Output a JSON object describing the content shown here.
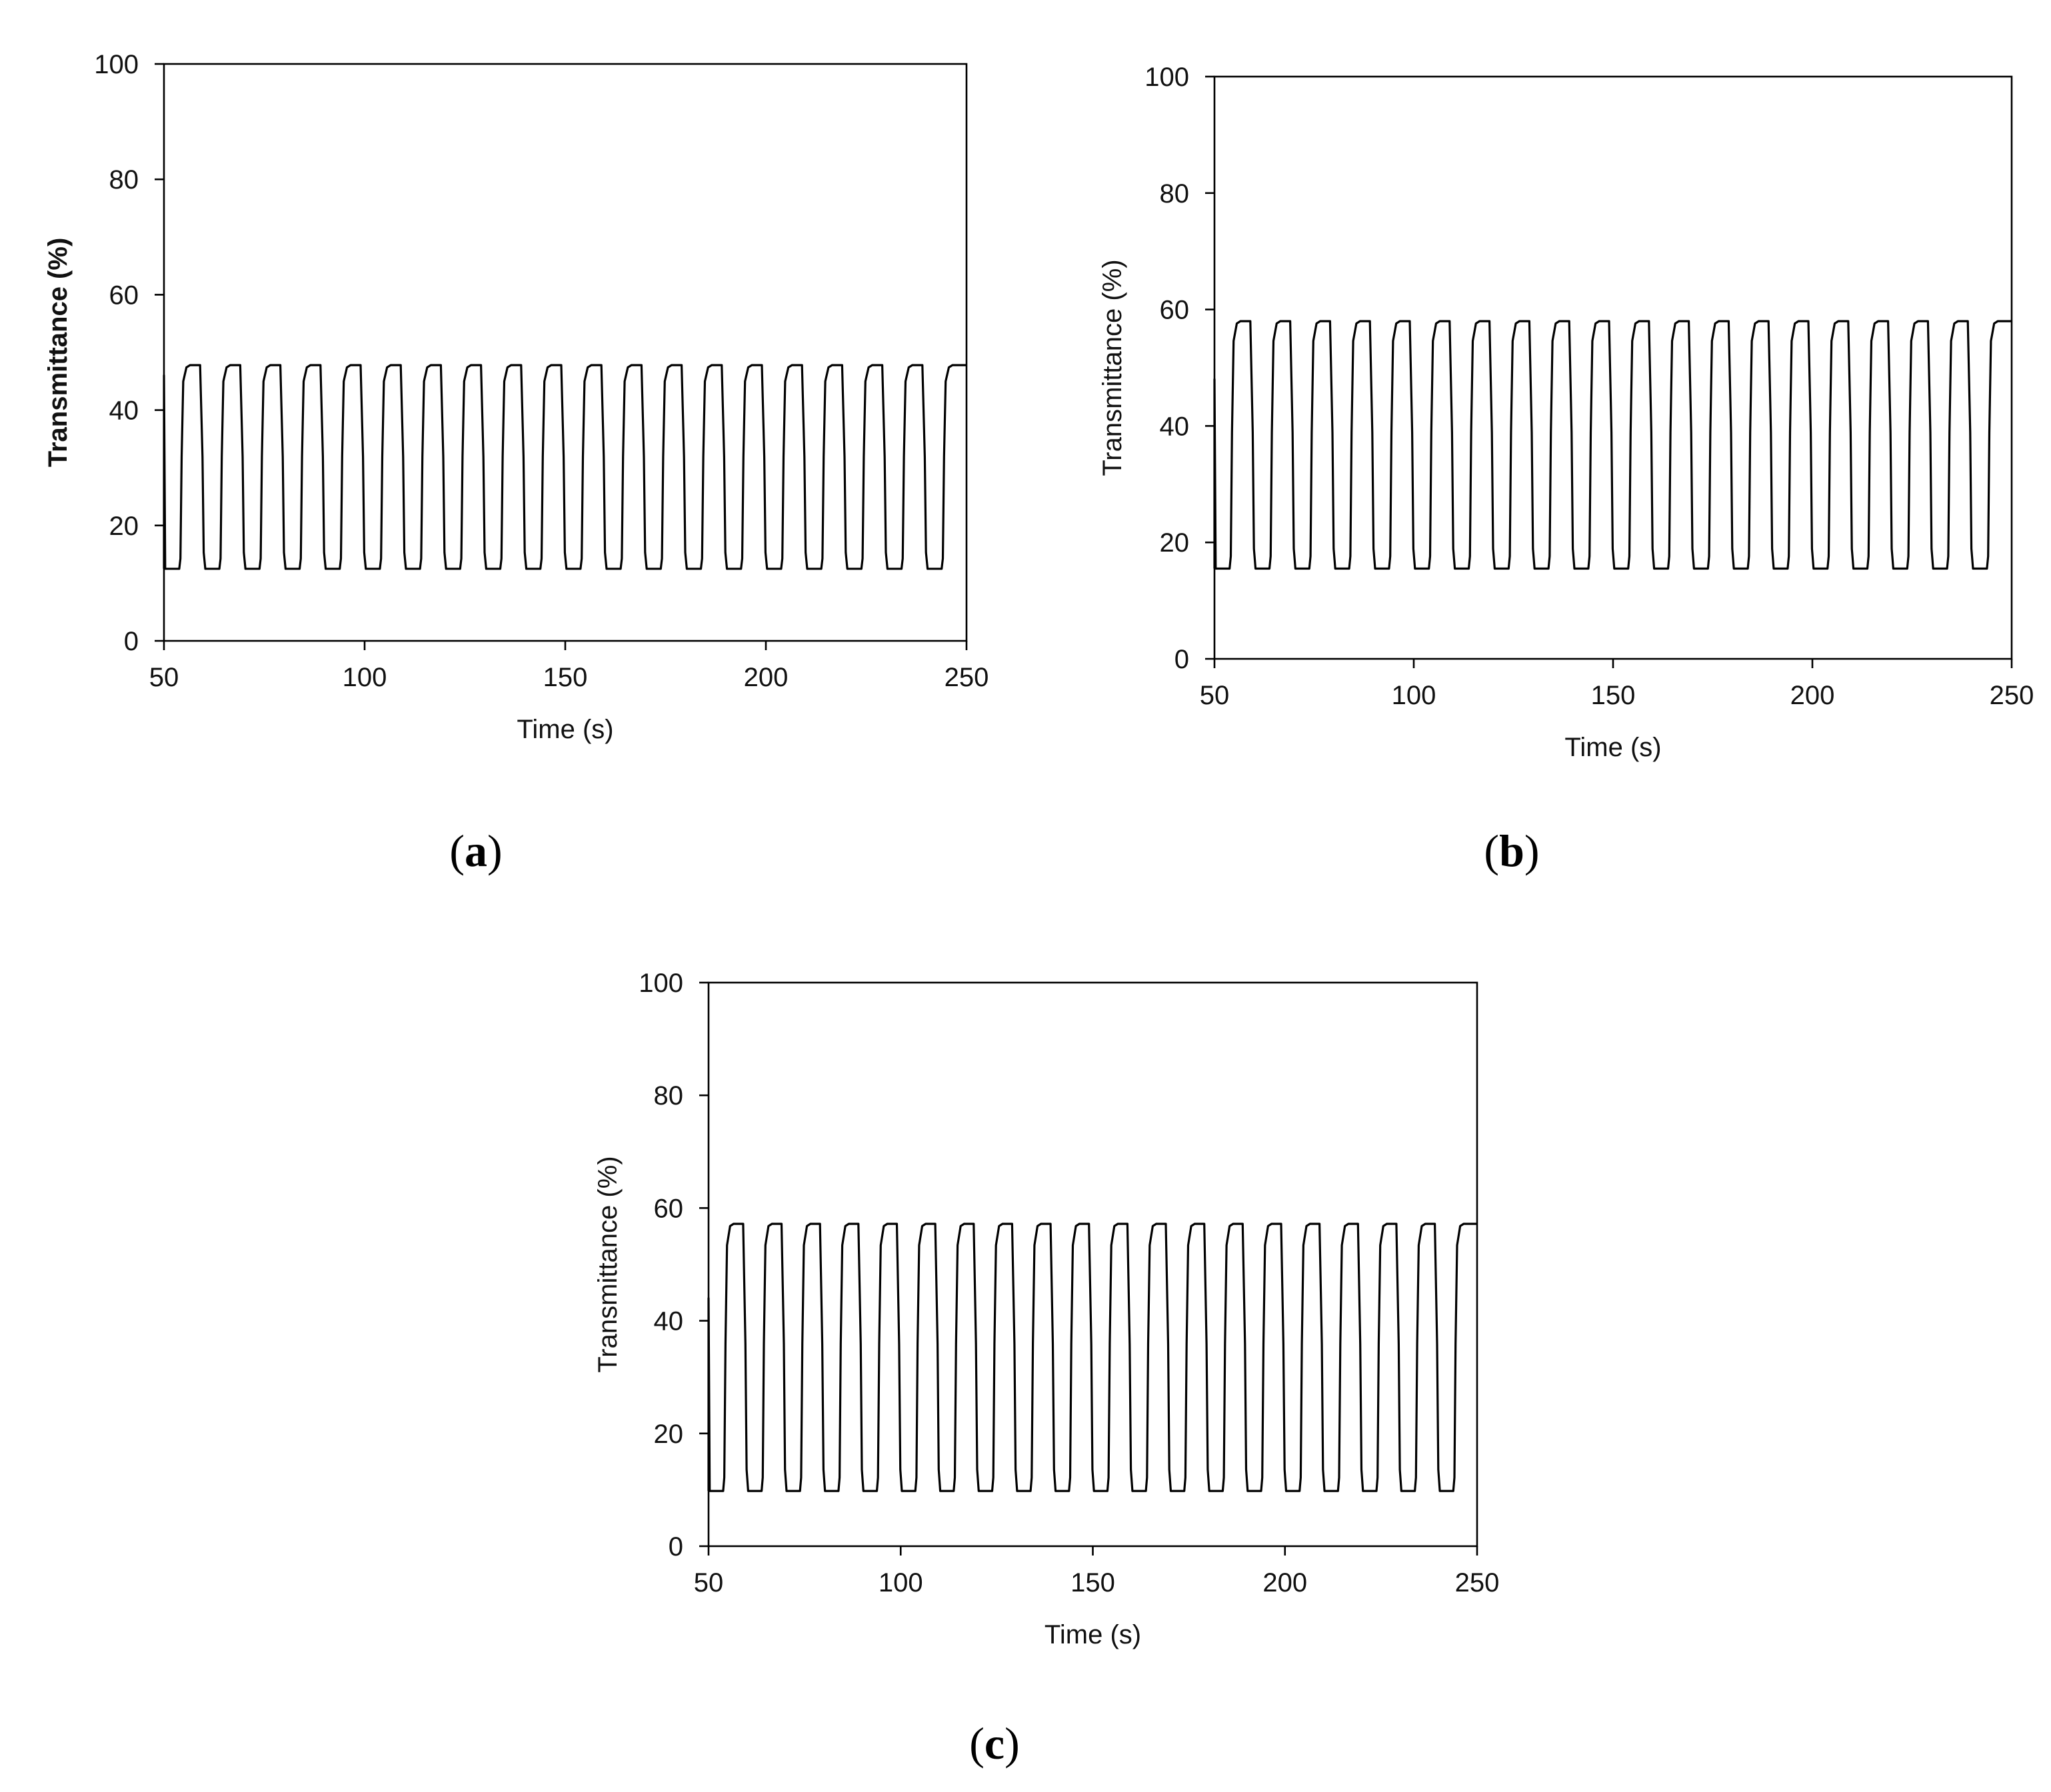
{
  "chart_data": [
    {
      "panel": "(a)",
      "panel_letter": "a",
      "type": "line",
      "title": "",
      "xlabel": "Time (s)",
      "ylabel": "Transmittance (%)",
      "ylabel_bold": true,
      "xlim": [
        50,
        250
      ],
      "ylim": [
        0,
        100
      ],
      "xticks": [
        50,
        100,
        150,
        200,
        250
      ],
      "yticks": [
        0,
        20,
        40,
        60,
        80,
        100
      ],
      "grid": false,
      "legend": "none",
      "series": [
        {
          "kind": "square-wave",
          "start_x": 50,
          "start_y": 46,
          "period": 10,
          "bleached_start": 55,
          "colored_start": 60,
          "high": 47.8,
          "low": 12.5,
          "end_x": 250,
          "end_y": 47.8
        }
      ]
    },
    {
      "panel": "(b)",
      "panel_letter": "b",
      "type": "line",
      "title": "",
      "xlabel": "Time (s)",
      "ylabel": "Transmittance (%)",
      "ylabel_bold": false,
      "xlim": [
        50,
        250
      ],
      "ylim": [
        0,
        100
      ],
      "xticks": [
        50,
        100,
        150,
        200,
        250
      ],
      "yticks": [
        0,
        20,
        40,
        60,
        80,
        100
      ],
      "grid": false,
      "legend": "none",
      "series": [
        {
          "kind": "square-wave",
          "start_x": 50,
          "start_y": 48,
          "period": 10,
          "bleached_start": 55,
          "colored_start": 60,
          "high": 58,
          "low": 15.5,
          "end_x": 250,
          "end_y": 58
        }
      ]
    },
    {
      "panel": "(c)",
      "panel_letter": "c",
      "type": "line",
      "title": "",
      "xlabel": "Time (s)",
      "ylabel": "Transmittance (%)",
      "ylabel_bold": false,
      "xlim": [
        50,
        250
      ],
      "ylim": [
        0,
        100
      ],
      "xticks": [
        50,
        100,
        150,
        200,
        250
      ],
      "yticks": [
        0,
        20,
        40,
        60,
        80,
        100
      ],
      "grid": false,
      "legend": "none",
      "series": [
        {
          "kind": "square-wave",
          "start_x": 50,
          "start_y": 44,
          "period": 10,
          "bleached_start": 55,
          "colored_start": 60,
          "high": 57.2,
          "low": 9.8,
          "end_x": 250,
          "end_y": 57.2
        }
      ]
    }
  ]
}
